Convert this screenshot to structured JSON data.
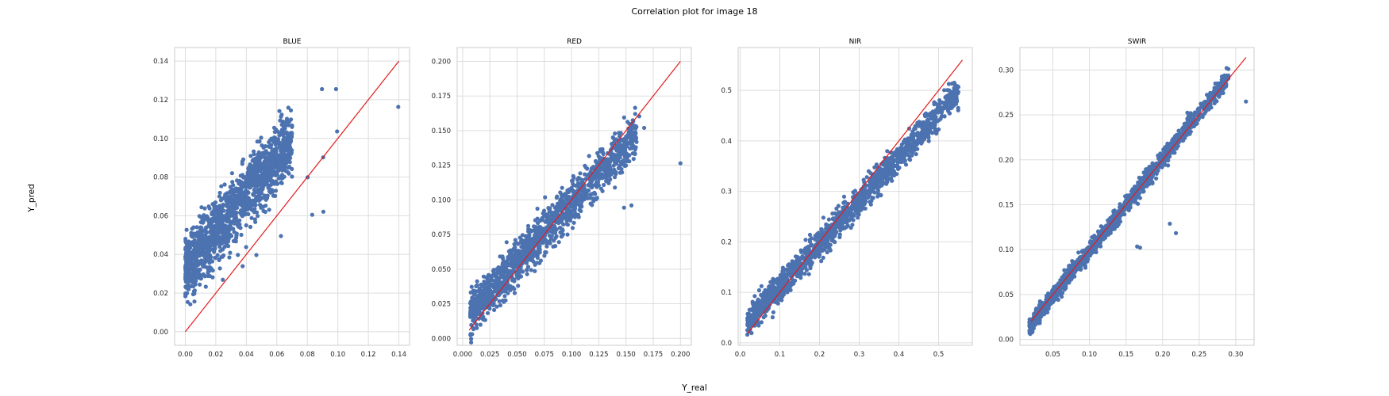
{
  "figure": {
    "title": "Correlation plot for image 18",
    "xlabel": "Y_real",
    "ylabel": "Y_pred"
  },
  "colors": {
    "points": "#4c72b0",
    "line": "#e41a1c",
    "grid": "#dddddd",
    "frame": "#cccccc"
  },
  "chart_data": [
    {
      "type": "scatter",
      "title": "BLUE",
      "xlim": [
        -0.007,
        0.147
      ],
      "ylim": [
        -0.007,
        0.147
      ],
      "xticks": [
        0.0,
        0.02,
        0.04,
        0.06,
        0.08,
        0.1,
        0.12,
        0.14
      ],
      "yticks": [
        0.0,
        0.02,
        0.04,
        0.06,
        0.08,
        0.1,
        0.12,
        0.14
      ],
      "tick_decimals": 2,
      "identity_line": [
        0.0,
        0.14
      ],
      "cloud": {
        "x_range": [
          0.0,
          0.07
        ],
        "slope": 0.95,
        "intercept": 0.033,
        "spread": 0.012
      },
      "outliers": [
        [
          0.0988,
          0.1255
        ],
        [
          0.0896,
          0.1255
        ],
        [
          0.1396,
          0.1163
        ],
        [
          0.0995,
          0.1036
        ],
        [
          0.0904,
          0.0902
        ],
        [
          0.0802,
          0.0799
        ],
        [
          0.0905,
          0.0621
        ],
        [
          0.0832,
          0.0605
        ],
        [
          0.0627,
          0.0495
        ],
        [
          0.0466,
          0.0397
        ],
        [
          0.0376,
          0.0339
        ],
        [
          0.0246,
          0.0269
        ]
      ]
    },
    {
      "type": "scatter",
      "title": "RED",
      "xlim": [
        -0.005,
        0.21
      ],
      "ylim": [
        -0.005,
        0.21
      ],
      "xticks": [
        0.0,
        0.025,
        0.05,
        0.075,
        0.1,
        0.125,
        0.15,
        0.175,
        0.2
      ],
      "yticks": [
        0.0,
        0.025,
        0.05,
        0.075,
        0.1,
        0.125,
        0.15,
        0.175,
        0.2
      ],
      "tick_decimals": 3,
      "identity_line": [
        0.006,
        0.2
      ],
      "cloud": {
        "x_range": [
          0.007,
          0.16
        ],
        "slope": 0.85,
        "intercept": 0.013,
        "spread": 0.011
      },
      "outliers": [
        [
          0.2,
          0.1264
        ],
        [
          0.1667,
          0.152
        ],
        [
          0.1622,
          0.1604
        ],
        [
          0.1583,
          0.1331
        ],
        [
          0.155,
          0.096
        ],
        [
          0.1482,
          0.0944
        ],
        [
          0.0485,
          0.0566
        ],
        [
          0.0083,
          0.0372
        ]
      ]
    },
    {
      "type": "scatter",
      "title": "NIR",
      "xlim": [
        -0.005,
        0.585
      ],
      "ylim": [
        -0.005,
        0.585
      ],
      "xticks": [
        0.0,
        0.1,
        0.2,
        0.3,
        0.4,
        0.5
      ],
      "yticks": [
        0.0,
        0.1,
        0.2,
        0.3,
        0.4,
        0.5
      ],
      "tick_decimals": 1,
      "identity_line": [
        0.018,
        0.56
      ],
      "cloud": {
        "x_range": [
          0.018,
          0.55
        ],
        "slope": 0.86,
        "intercept": 0.025,
        "spread": 0.02
      },
      "outliers": [
        [
          0.5495,
          0.4606
        ],
        [
          0.5499,
          0.5067
        ],
        [
          0.5356,
          0.4914
        ],
        [
          0.4944,
          0.4145
        ],
        [
          0.4434,
          0.3738
        ],
        [
          0.2963,
          0.2479
        ],
        [
          0.3113,
          0.3227
        ],
        [
          0.2166,
          0.2346
        ]
      ]
    },
    {
      "type": "scatter",
      "title": "SWIR",
      "xlim": [
        0.005,
        0.325
      ],
      "ylim": [
        -0.0065,
        0.325
      ],
      "xticks": [
        0.05,
        0.1,
        0.15,
        0.2,
        0.25,
        0.3
      ],
      "yticks": [
        0.0,
        0.05,
        0.1,
        0.15,
        0.2,
        0.25,
        0.3
      ],
      "tick_decimals": 2,
      "identity_line": [
        0.02,
        0.314
      ],
      "cloud": {
        "x_range": [
          0.018,
          0.29
        ],
        "slope": 1.02,
        "intercept": -0.003,
        "spread": 0.007
      },
      "outliers": [
        [
          0.3139,
          0.2649
        ],
        [
          0.2778,
          0.2731
        ],
        [
          0.2182,
          0.1184
        ],
        [
          0.2099,
          0.1289
        ],
        [
          0.1692,
          0.1022
        ],
        [
          0.1652,
          0.1035
        ],
        [
          0.0222,
          0.0087
        ]
      ]
    }
  ]
}
